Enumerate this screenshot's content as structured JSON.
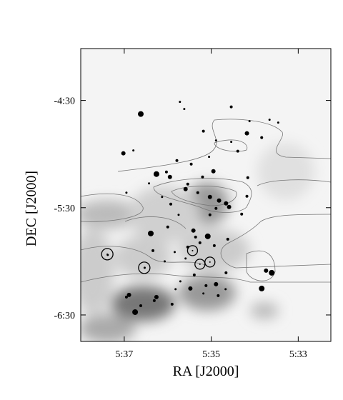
{
  "chart_data": {
    "type": "scatter",
    "xlabel": "RA [J2000]",
    "ylabel": "DEC [J2000]",
    "xlim": [
      338,
      332.25
    ],
    "ylim": [
      -404.8,
      -241
    ],
    "xticks": [
      {
        "value": 337,
        "label": "5:37"
      },
      {
        "value": 335,
        "label": "5:35"
      },
      {
        "value": 333,
        "label": "5:33"
      }
    ],
    "yticks": [
      {
        "value": -270,
        "label": "-4:30"
      },
      {
        "value": -330,
        "label": "-5:30"
      },
      {
        "value": -390,
        "label": "-6:30"
      }
    ],
    "series": [
      {
        "marker": "filled",
        "color": "#000000",
        "x": [
          336.62,
          335.72,
          335.62,
          334.54,
          333.46,
          334.12,
          335.18,
          334.18,
          333.84,
          333.66,
          337.02,
          336.79,
          334.89,
          334.54,
          334.39,
          335.05,
          335.79,
          335.46,
          336.26,
          336.03,
          335.95,
          334.95,
          336.43,
          335.2,
          335.54,
          334.16,
          335.59,
          335.31,
          335.03,
          334.82,
          334.66,
          334.59,
          334.89,
          335.03,
          335.93,
          336.95,
          336.13,
          335.75,
          334.18,
          334.3,
          336.39,
          336.0,
          335.41,
          335.36,
          335.08,
          334.62,
          335.54,
          335.26,
          334.93,
          336.34,
          335.84,
          335.59,
          336.07,
          335.39,
          334.66,
          333.74,
          333.61,
          336.89,
          336.95,
          336.75,
          336.62,
          336.31,
          336.26,
          335.9,
          335.82,
          335.48,
          335.12,
          335.18,
          334.89,
          334.84,
          334.67,
          333.84,
          337.38,
          336.53,
          335.71
        ],
        "values": [
          -277.6,
          -270.8,
          -274.8,
          -273.6,
          -282.4,
          -281.6,
          -287.2,
          -288.4,
          -290.8,
          -280.8,
          -299.6,
          -298.0,
          -292.4,
          -293.2,
          -298.4,
          -301.6,
          -303.6,
          -305.6,
          -311.2,
          -310.0,
          -312.8,
          -309.6,
          -316.4,
          -312.8,
          -316.8,
          -313.2,
          -319.6,
          -321.6,
          -324.0,
          -326.0,
          -327.6,
          -329.6,
          -330.4,
          -334.0,
          -328.0,
          -321.6,
          -324.0,
          -334.0,
          -323.6,
          -333.6,
          -344.4,
          -340.8,
          -342.8,
          -346.4,
          -346.0,
          -347.6,
          -352.0,
          -349.6,
          -351.2,
          -354.0,
          -354.8,
          -358.4,
          -360.0,
          -367.6,
          -366.4,
          -365.2,
          -366.4,
          -378.8,
          -380.0,
          -388.4,
          -384.8,
          -382.0,
          -380.0,
          -384.0,
          -375.6,
          -375.2,
          -373.6,
          -378.0,
          -372.8,
          -379.2,
          -375.6,
          -375.2,
          -356.4,
          -363.6,
          -371.2
        ],
        "sizes": [
          4,
          1.5,
          1.5,
          2,
          1.5,
          1.5,
          2,
          3,
          2,
          1.5,
          3,
          1.5,
          1.5,
          1.5,
          2,
          1.5,
          2,
          2,
          4,
          2,
          3,
          3,
          1.5,
          2,
          2,
          2,
          3,
          2,
          3,
          3,
          3,
          3,
          2,
          2,
          2,
          1.5,
          1.5,
          1.5,
          2,
          2,
          4,
          2,
          3,
          2,
          4,
          2,
          2,
          2,
          2,
          2,
          1.5,
          1.5,
          1.5,
          2,
          2,
          3,
          4,
          3,
          2,
          4,
          2,
          2,
          3,
          2,
          1.5,
          3,
          2,
          1.5,
          3,
          2,
          1.5,
          4,
          1.5,
          1.5,
          1.5
        ]
      },
      {
        "marker": "open",
        "color": "#000000",
        "x": [
          337.39,
          336.54,
          335.43,
          335.26,
          335.03
        ],
        "values": [
          -356.0,
          -363.6,
          -354.0,
          -361.6,
          -360.4
        ],
        "sizes": [
          8,
          8,
          7,
          7,
          7
        ]
      }
    ]
  }
}
